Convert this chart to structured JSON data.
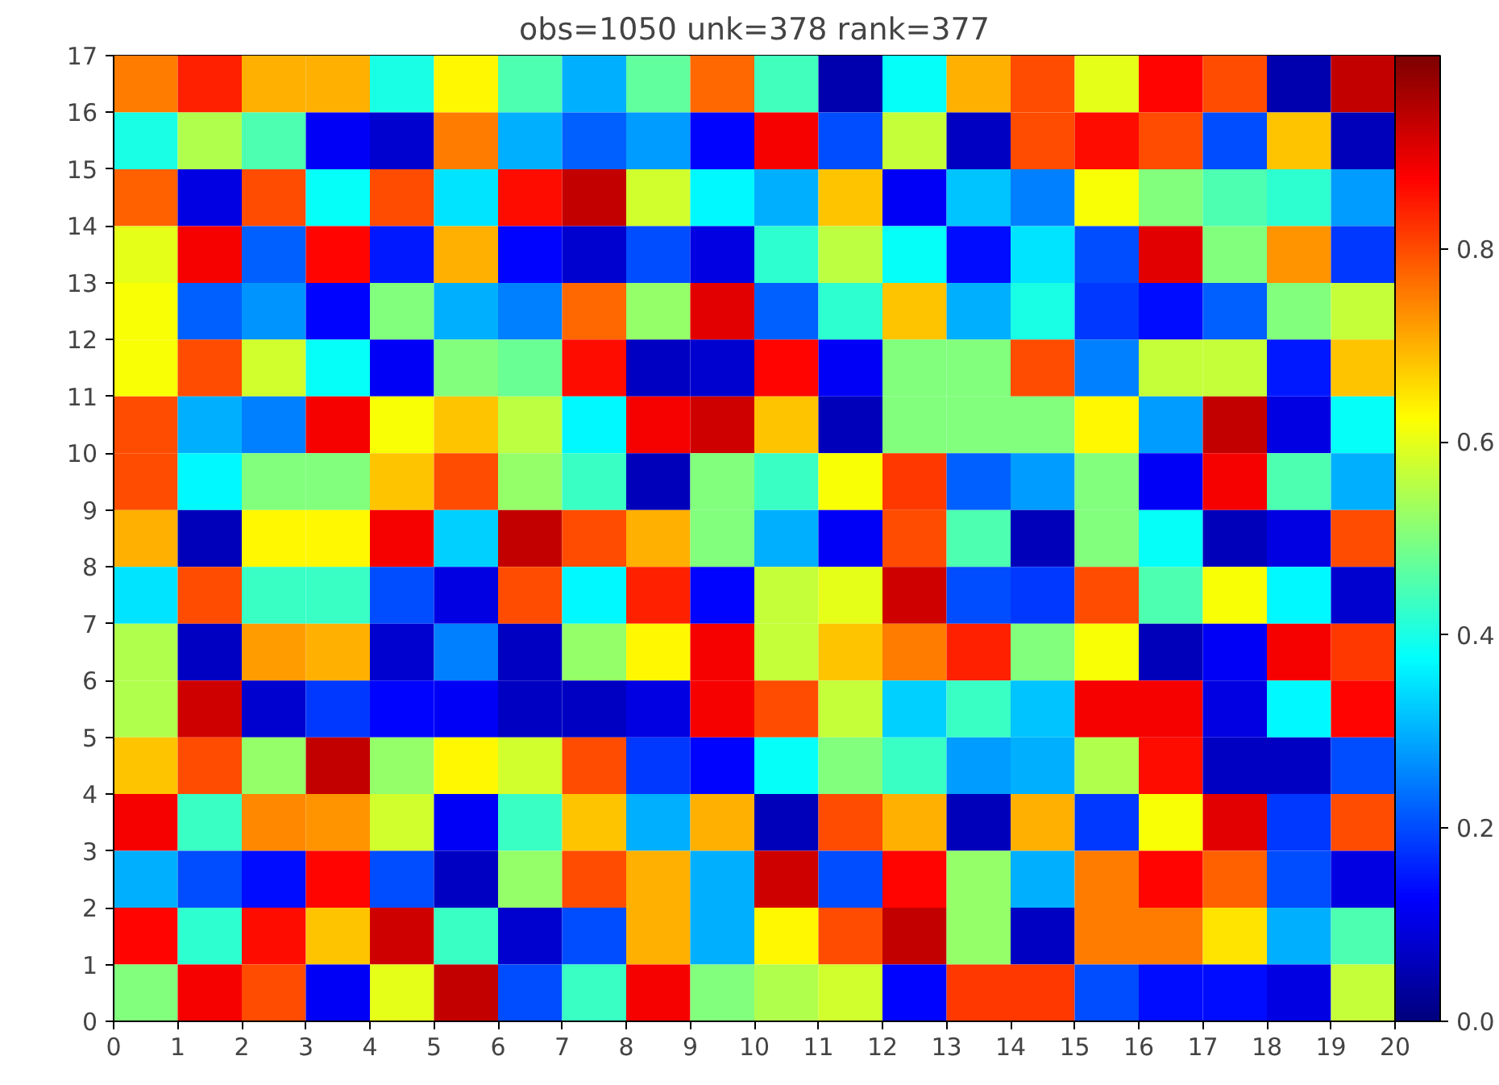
{
  "chart_data": {
    "type": "heatmap",
    "title": "obs=1050 unk=378 rank=377",
    "xlim": [
      0,
      20
    ],
    "xticks": [
      0,
      1,
      2,
      3,
      4,
      5,
      6,
      7,
      8,
      9,
      10,
      11,
      12,
      13,
      14,
      15,
      16,
      17,
      18,
      19,
      20
    ],
    "ylim": [
      0,
      17
    ],
    "yticks": [
      0,
      1,
      2,
      3,
      4,
      5,
      6,
      7,
      8,
      9,
      10,
      11,
      12,
      13,
      14,
      15,
      16,
      17
    ],
    "clim": [
      0,
      1
    ],
    "cticks": [
      {
        "value": 0,
        "label": "0.0"
      },
      {
        "value": 0.2,
        "label": "0.2"
      },
      {
        "value": 0.4,
        "label": "0.4"
      },
      {
        "value": 0.6,
        "label": "0.6"
      },
      {
        "value": 0.8,
        "label": "0.8"
      }
    ],
    "cells": [
      [
        0.75,
        0.84,
        0.7,
        0.7,
        0.4,
        0.63,
        0.45,
        0.3,
        0.47,
        0.77,
        0.44,
        0.05,
        0.38,
        0.7,
        0.8,
        0.6,
        0.87,
        0.8,
        0.05,
        0.93
      ],
      [
        0.4,
        0.55,
        0.45,
        0.12,
        0.08,
        0.75,
        0.3,
        0.22,
        0.28,
        0.13,
        0.88,
        0.2,
        0.57,
        0.07,
        0.8,
        0.86,
        0.8,
        0.2,
        0.68,
        0.06
      ],
      [
        0.78,
        0.1,
        0.8,
        0.38,
        0.8,
        0.35,
        0.86,
        0.93,
        0.58,
        0.37,
        0.3,
        0.68,
        0.12,
        0.32,
        0.25,
        0.62,
        0.5,
        0.45,
        0.42,
        0.28
      ],
      [
        0.6,
        0.88,
        0.22,
        0.87,
        0.15,
        0.7,
        0.13,
        0.08,
        0.2,
        0.1,
        0.42,
        0.56,
        0.38,
        0.14,
        0.35,
        0.2,
        0.9,
        0.5,
        0.73,
        0.18
      ],
      [
        0.62,
        0.22,
        0.27,
        0.13,
        0.5,
        0.3,
        0.25,
        0.77,
        0.52,
        0.9,
        0.22,
        0.42,
        0.68,
        0.3,
        0.4,
        0.18,
        0.14,
        0.22,
        0.5,
        0.57
      ],
      [
        0.62,
        0.8,
        0.58,
        0.38,
        0.12,
        0.5,
        0.48,
        0.86,
        0.07,
        0.08,
        0.87,
        0.12,
        0.5,
        0.5,
        0.8,
        0.25,
        0.57,
        0.57,
        0.15,
        0.68
      ],
      [
        0.8,
        0.3,
        0.25,
        0.88,
        0.62,
        0.68,
        0.56,
        0.37,
        0.88,
        0.92,
        0.68,
        0.06,
        0.5,
        0.5,
        0.5,
        0.63,
        0.28,
        0.93,
        0.1,
        0.38
      ],
      [
        0.8,
        0.37,
        0.5,
        0.5,
        0.68,
        0.8,
        0.52,
        0.43,
        0.06,
        0.5,
        0.43,
        0.62,
        0.82,
        0.22,
        0.28,
        0.5,
        0.12,
        0.88,
        0.45,
        0.3
      ],
      [
        0.7,
        0.06,
        0.63,
        0.63,
        0.88,
        0.33,
        0.93,
        0.8,
        0.7,
        0.5,
        0.3,
        0.12,
        0.8,
        0.45,
        0.06,
        0.5,
        0.38,
        0.06,
        0.1,
        0.8
      ],
      [
        0.35,
        0.8,
        0.43,
        0.43,
        0.2,
        0.1,
        0.8,
        0.37,
        0.84,
        0.13,
        0.57,
        0.6,
        0.92,
        0.2,
        0.18,
        0.8,
        0.45,
        0.62,
        0.37,
        0.08
      ],
      [
        0.55,
        0.07,
        0.72,
        0.7,
        0.08,
        0.25,
        0.07,
        0.52,
        0.63,
        0.88,
        0.57,
        0.68,
        0.75,
        0.84,
        0.5,
        0.62,
        0.06,
        0.12,
        0.88,
        0.82
      ],
      [
        0.55,
        0.92,
        0.08,
        0.18,
        0.13,
        0.12,
        0.07,
        0.07,
        0.1,
        0.88,
        0.8,
        0.57,
        0.33,
        0.43,
        0.32,
        0.88,
        0.88,
        0.1,
        0.37,
        0.87
      ],
      [
        0.68,
        0.8,
        0.52,
        0.93,
        0.52,
        0.63,
        0.58,
        0.8,
        0.18,
        0.13,
        0.38,
        0.5,
        0.43,
        0.28,
        0.3,
        0.55,
        0.86,
        0.07,
        0.07,
        0.2
      ],
      [
        0.88,
        0.43,
        0.74,
        0.73,
        0.58,
        0.12,
        0.43,
        0.68,
        0.3,
        0.7,
        0.06,
        0.8,
        0.7,
        0.06,
        0.7,
        0.18,
        0.62,
        0.9,
        0.18,
        0.8
      ],
      [
        0.3,
        0.2,
        0.14,
        0.87,
        0.2,
        0.07,
        0.52,
        0.8,
        0.7,
        0.3,
        0.92,
        0.2,
        0.87,
        0.52,
        0.3,
        0.75,
        0.87,
        0.78,
        0.2,
        0.1
      ],
      [
        0.87,
        0.42,
        0.86,
        0.68,
        0.92,
        0.43,
        0.08,
        0.2,
        0.7,
        0.3,
        0.63,
        0.8,
        0.93,
        0.52,
        0.07,
        0.75,
        0.75,
        0.65,
        0.3,
        0.45
      ],
      [
        0.5,
        0.88,
        0.8,
        0.12,
        0.6,
        0.93,
        0.2,
        0.43,
        0.88,
        0.5,
        0.55,
        0.58,
        0.13,
        0.82,
        0.82,
        0.2,
        0.14,
        0.14,
        0.1,
        0.57
      ]
    ]
  }
}
